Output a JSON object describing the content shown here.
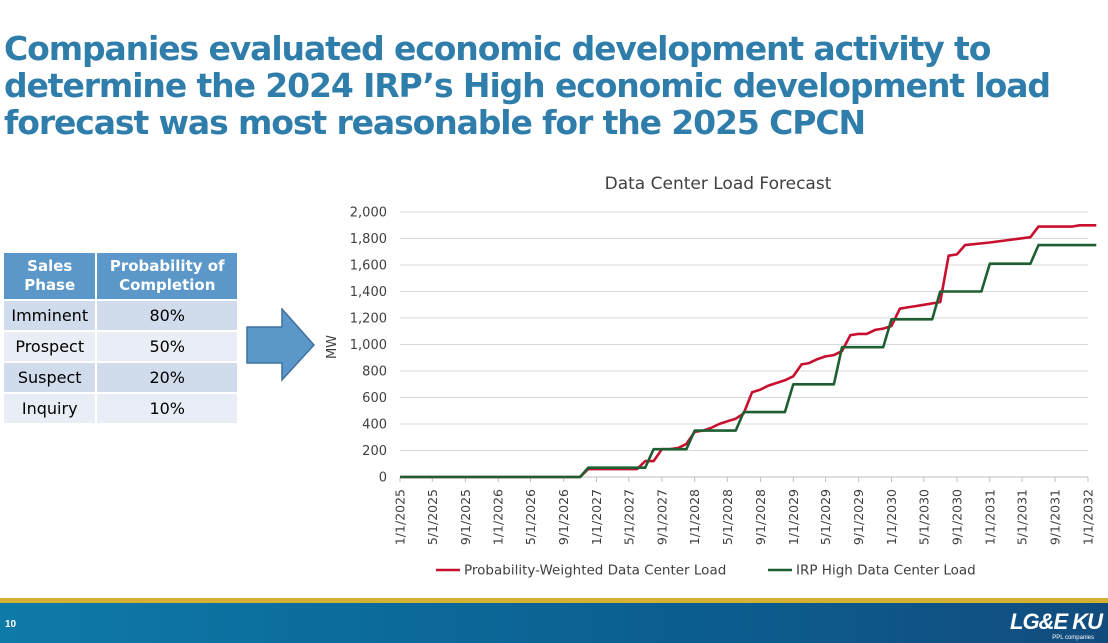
{
  "slide": {
    "title": "Companies evaluated economic development activity to determine the 2024 IRP’s High economic development load forecast was most reasonable for the 2025 CPCN",
    "page_number": "10",
    "logo_text": "LG&E KU",
    "logo_subtext": "PPL companies",
    "accent_color": "#2f7dab"
  },
  "sales_table": {
    "headers": [
      "Sales Phase",
      "Probability of Completion"
    ],
    "rows": [
      {
        "phase": "Imminent",
        "probability": "80%"
      },
      {
        "phase": "Prospect",
        "probability": "50%"
      },
      {
        "phase": "Suspect",
        "probability": "20%"
      },
      {
        "phase": "Inquiry",
        "probability": "10%"
      }
    ]
  },
  "chart_data": {
    "type": "line",
    "title": "Data Center Load Forecast",
    "ylabel": "MW",
    "xlabel": "",
    "ylim": [
      0,
      2000
    ],
    "xlim": [
      "1/1/2025",
      "1/1/2032"
    ],
    "yticks": [
      0,
      200,
      400,
      600,
      800,
      1000,
      1200,
      1400,
      1600,
      1800,
      2000
    ],
    "ytick_labels": [
      "0",
      "200",
      "400",
      "600",
      "800",
      "1,000",
      "1,200",
      "1,400",
      "1,600",
      "1,800",
      "2,000"
    ],
    "xticks": [
      "1/1/2025",
      "5/1/2025",
      "9/1/2025",
      "1/1/2026",
      "5/1/2026",
      "9/1/2026",
      "1/1/2027",
      "5/1/2027",
      "9/1/2027",
      "1/1/2028",
      "5/1/2028",
      "9/1/2028",
      "1/1/2029",
      "5/1/2029",
      "9/1/2029",
      "1/1/2030",
      "5/1/2030",
      "9/1/2030",
      "1/1/2031",
      "5/1/2031",
      "9/1/2031",
      "1/1/2032"
    ],
    "grid": true,
    "legend_position": "bottom",
    "series": [
      {
        "name": "Probability-Weighted Data Center Load",
        "color": "#c8102e",
        "points": [
          [
            "1/1/2025",
            0
          ],
          [
            "11/1/2026",
            0
          ],
          [
            "12/1/2026",
            60
          ],
          [
            "6/1/2027",
            60
          ],
          [
            "7/1/2027",
            120
          ],
          [
            "8/1/2027",
            120
          ],
          [
            "9/1/2027",
            210
          ],
          [
            "10/1/2027",
            210
          ],
          [
            "11/1/2027",
            220
          ],
          [
            "12/1/2027",
            250
          ],
          [
            "1/1/2028",
            340
          ],
          [
            "2/1/2028",
            350
          ],
          [
            "3/1/2028",
            370
          ],
          [
            "4/1/2028",
            400
          ],
          [
            "5/1/2028",
            420
          ],
          [
            "6/1/2028",
            440
          ],
          [
            "7/1/2028",
            480
          ],
          [
            "8/1/2028",
            640
          ],
          [
            "9/1/2028",
            660
          ],
          [
            "10/1/2028",
            690
          ],
          [
            "11/1/2028",
            710
          ],
          [
            "12/1/2028",
            730
          ],
          [
            "1/1/2029",
            760
          ],
          [
            "2/1/2029",
            850
          ],
          [
            "3/1/2029",
            860
          ],
          [
            "4/1/2029",
            890
          ],
          [
            "5/1/2029",
            910
          ],
          [
            "6/1/2029",
            920
          ],
          [
            "7/1/2029",
            950
          ],
          [
            "8/1/2029",
            1070
          ],
          [
            "9/1/2029",
            1080
          ],
          [
            "10/1/2029",
            1080
          ],
          [
            "11/1/2029",
            1110
          ],
          [
            "12/1/2029",
            1120
          ],
          [
            "1/1/2030",
            1140
          ],
          [
            "2/1/2030",
            1270
          ],
          [
            "3/1/2030",
            1280
          ],
          [
            "4/1/2030",
            1290
          ],
          [
            "5/1/2030",
            1300
          ],
          [
            "6/1/2030",
            1310
          ],
          [
            "7/1/2030",
            1320
          ],
          [
            "8/1/2030",
            1670
          ],
          [
            "9/1/2030",
            1680
          ],
          [
            "10/1/2030",
            1750
          ],
          [
            "1/1/2031",
            1770
          ],
          [
            "6/1/2031",
            1810
          ],
          [
            "7/1/2031",
            1890
          ],
          [
            "11/1/2031",
            1890
          ],
          [
            "12/1/2031",
            1900
          ],
          [
            "2/1/2032",
            1900
          ]
        ]
      },
      {
        "name": "IRP High Data Center Load",
        "color": "#1e5f32",
        "points": [
          [
            "1/1/2025",
            0
          ],
          [
            "11/1/2026",
            0
          ],
          [
            "12/1/2026",
            70
          ],
          [
            "7/1/2027",
            70
          ],
          [
            "8/1/2027",
            210
          ],
          [
            "12/1/2027",
            210
          ],
          [
            "1/1/2028",
            350
          ],
          [
            "6/1/2028",
            350
          ],
          [
            "7/1/2028",
            490
          ],
          [
            "12/1/2028",
            490
          ],
          [
            "1/1/2029",
            700
          ],
          [
            "6/1/2029",
            700
          ],
          [
            "7/1/2029",
            980
          ],
          [
            "12/1/2029",
            980
          ],
          [
            "1/1/2030",
            1190
          ],
          [
            "6/1/2030",
            1190
          ],
          [
            "7/1/2030",
            1400
          ],
          [
            "12/1/2030",
            1400
          ],
          [
            "1/1/2031",
            1610
          ],
          [
            "6/1/2031",
            1610
          ],
          [
            "7/1/2031",
            1750
          ],
          [
            "2/1/2032",
            1750
          ]
        ]
      }
    ]
  }
}
